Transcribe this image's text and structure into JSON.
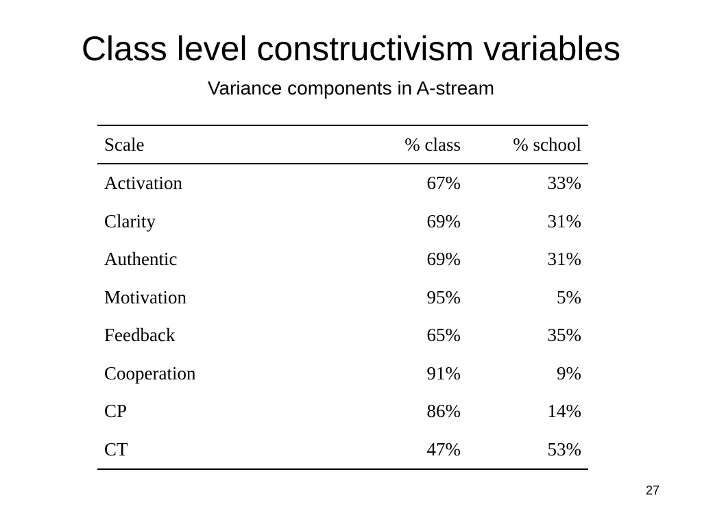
{
  "slide": {
    "title": "Class level constructivism variables",
    "subtitle": "Variance components in A-stream",
    "page_number": "27"
  },
  "table": {
    "headers": [
      "Scale",
      "% class",
      "% school"
    ],
    "rows": [
      [
        "Activation",
        "67%",
        "33%"
      ],
      [
        "Clarity",
        "69%",
        "31%"
      ],
      [
        "Authentic",
        "69%",
        "31%"
      ],
      [
        "Motivation",
        "95%",
        "5%"
      ],
      [
        "Feedback",
        "65%",
        "35%"
      ],
      [
        "Cooperation",
        "91%",
        "9%"
      ],
      [
        "CP",
        "86%",
        "14%"
      ],
      [
        "CT",
        "47%",
        "53%"
      ]
    ]
  }
}
